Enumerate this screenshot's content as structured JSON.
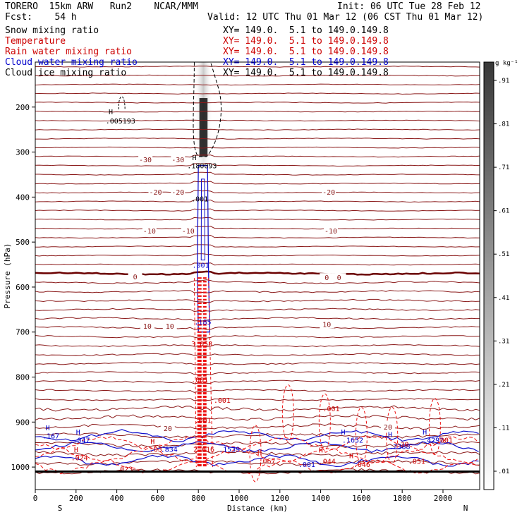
{
  "header": {
    "model": "TORERO  15km ARW   Run2    NCAR/MMM",
    "init": "Init: 06 UTC Tue 28 Feb 12",
    "fcst": "Fcst:    54 h",
    "valid": "Valid: 12 UTC Thu 01 Mar 12 (06 CST Thu 01 Mar 12)"
  },
  "legend": [
    {
      "name": "Snow mixing ratio",
      "xy": "XY= 149.0.  5.1 to 149.0.149.8",
      "color": "#000000"
    },
    {
      "name": "Temperature",
      "xy": "XY= 149.0.  5.1 to 149.0.149.8",
      "color": "#cc0000"
    },
    {
      "name": "Rain water mixing ratio",
      "xy": "XY= 149.0.  5.1 to 149.0.149.8",
      "color": "#cc0000"
    },
    {
      "name": "Cloud water mixing ratio",
      "xy": "XY= 149.0.  5.1 to 149.0.149.8",
      "color": "#0000cc"
    },
    {
      "name": "Cloud ice mixing ratio",
      "xy": "XY= 149.0.  5.1 to 149.0.149.8",
      "color": "#000000"
    }
  ],
  "chart_data": {
    "type": "cross-section contour",
    "xlabel": "Distance (km)",
    "ylabel": "Pressure (hPa)",
    "xlim": [
      0,
      2180
    ],
    "ylim": [
      1050,
      100
    ],
    "x_ticks": [
      0,
      200,
      400,
      600,
      800,
      1000,
      1200,
      1400,
      1600,
      1800,
      2000
    ],
    "y_ticks": [
      200,
      300,
      400,
      500,
      600,
      700,
      800,
      900,
      1000
    ],
    "x_ends": [
      "S",
      "N"
    ],
    "colorbar": {
      "unit": "g kg⁻¹",
      "ticks": [
        ".01",
        ".11",
        ".21",
        ".31",
        ".41",
        ".51",
        ".61",
        ".71",
        ".81",
        ".91"
      ]
    },
    "isotherms": [
      {
        "value": -30,
        "label": "-30",
        "pressure": 325
      },
      {
        "value": -20,
        "label": "-20",
        "pressure": 405
      },
      {
        "value": -10,
        "label": "-10",
        "pressure": 495
      },
      {
        "value": 0,
        "label": "0",
        "pressure": 575
      },
      {
        "value": 10,
        "label": "10",
        "pressure": 700
      },
      {
        "value": 20,
        "label": "20",
        "pressure": 920
      }
    ],
    "isotherm_label_positions": [
      {
        "text": "-30",
        "x": 540,
        "p": 318
      },
      {
        "text": "-30",
        "x": 700,
        "p": 318
      },
      {
        "text": "-20",
        "x": 590,
        "p": 390
      },
      {
        "text": "-20",
        "x": 700,
        "p": 390
      },
      {
        "text": "-20",
        "x": 1440,
        "p": 390
      },
      {
        "text": "-10",
        "x": 560,
        "p": 476
      },
      {
        "text": "-10",
        "x": 750,
        "p": 476
      },
      {
        "text": "-10",
        "x": 1450,
        "p": 476
      },
      {
        "text": "0",
        "x": 490,
        "p": 578
      },
      {
        "text": "0",
        "x": 1430,
        "p": 580
      },
      {
        "text": "0",
        "x": 1490,
        "p": 580
      },
      {
        "text": "10",
        "x": 550,
        "p": 688
      },
      {
        "text": "10",
        "x": 660,
        "p": 688
      },
      {
        "text": "10",
        "x": 1430,
        "p": 684
      },
      {
        "text": "20",
        "x": 650,
        "p": 915
      },
      {
        "text": "20",
        "x": 1730,
        "p": 912
      }
    ],
    "annotations": [
      {
        "text": "H",
        "x": 360,
        "p": 216,
        "color": "#000000"
      },
      {
        "text": ".005193",
        "x": 345,
        "p": 236,
        "color": "#000000"
      },
      {
        "text": "H",
        "x": 770,
        "p": 318,
        "color": "#000000"
      },
      {
        "text": ".180093",
        "x": 745,
        "p": 336,
        "color": "#000000"
      },
      {
        "text": ".001",
        "x": 765,
        "p": 410,
        "color": "#000000"
      },
      {
        "text": ".001",
        "x": 770,
        "p": 557,
        "color": "#0000cc"
      },
      {
        "text": ".185",
        "x": 780,
        "p": 683,
        "color": "#0000cc"
      },
      {
        "text": "3.058",
        "x": 765,
        "p": 732,
        "color": "#cc0000"
      },
      {
        "text": ".001",
        "x": 765,
        "p": 812,
        "color": "#cc0000"
      },
      {
        "text": ".001",
        "x": 875,
        "p": 857,
        "color": "#cc0000"
      },
      {
        "text": ".001",
        "x": 1410,
        "p": 876,
        "color": "#cc0000"
      },
      {
        "text": ".001",
        "x": 780,
        "p": 902,
        "color": "#cc0000"
      },
      {
        "text": "H",
        "x": 50,
        "p": 918,
        "color": "#0000cc"
      },
      {
        "text": ".167",
        "x": 35,
        "p": 936,
        "color": "#0000cc"
      },
      {
        "text": "H",
        "x": 200,
        "p": 928,
        "color": "#0000cc"
      },
      {
        "text": ".047",
        "x": 185,
        "p": 946,
        "color": "#0000cc"
      },
      {
        "text": "H",
        "x": 190,
        "p": 967,
        "color": "#cc0000"
      },
      {
        "text": ".024",
        "x": 175,
        "p": 985,
        "color": "#cc0000"
      },
      {
        "text": "H",
        "x": 565,
        "p": 948,
        "color": "#cc0000"
      },
      {
        "text": ".03",
        "x": 560,
        "p": 966,
        "color": "#cc0000"
      },
      {
        "text": ".834",
        "x": 615,
        "p": 966,
        "color": "#0000cc"
      },
      {
        "text": "2.616",
        "x": 775,
        "p": 966,
        "color": "#cc0000"
      },
      {
        "text": ".1539",
        "x": 900,
        "p": 966,
        "color": "#0000cc"
      },
      {
        "text": ".023",
        "x": 395,
        "p": 1010,
        "color": "#cc0000"
      },
      {
        "text": "H",
        "x": 1090,
        "p": 973,
        "color": "#cc0000"
      },
      {
        "text": ".067",
        "x": 1095,
        "p": 992,
        "color": "#cc0000"
      },
      {
        "text": ".001",
        "x": 1290,
        "p": 1000,
        "color": "#0000cc"
      },
      {
        "text": "H",
        "x": 1390,
        "p": 968,
        "color": "#cc0000"
      },
      {
        "text": ".044",
        "x": 1390,
        "p": 993,
        "color": "#cc0000"
      },
      {
        "text": "H",
        "x": 1540,
        "p": 980,
        "color": "#cc0000"
      },
      {
        "text": ".046",
        "x": 1560,
        "p": 1000,
        "color": "#cc0000"
      },
      {
        "text": "H",
        "x": 1500,
        "p": 928,
        "color": "#0000cc"
      },
      {
        "text": ".1652",
        "x": 1505,
        "p": 946,
        "color": "#0000cc"
      },
      {
        "text": "H",
        "x": 1730,
        "p": 933,
        "color": "#0000cc"
      },
      {
        "text": ".2388",
        "x": 1735,
        "p": 960,
        "color": "#0000cc"
      },
      {
        "text": ".30",
        "x": 1770,
        "p": 955,
        "color": "#cc0000"
      },
      {
        "text": ".051",
        "x": 1830,
        "p": 993,
        "color": "#cc0000"
      },
      {
        "text": "H",
        "x": 1900,
        "p": 928,
        "color": "#0000cc"
      },
      {
        "text": ".4292",
        "x": 1900,
        "p": 946,
        "color": "#0000cc"
      },
      {
        "text": ".001",
        "x": 1965,
        "p": 946,
        "color": "#cc0000"
      }
    ]
  },
  "colors": {
    "isotherm": "#8b1a1a",
    "zero_isotherm": "#6b0000",
    "rain": "#ee1111",
    "cloud_water": "#1010cc",
    "snow": "#000000"
  }
}
